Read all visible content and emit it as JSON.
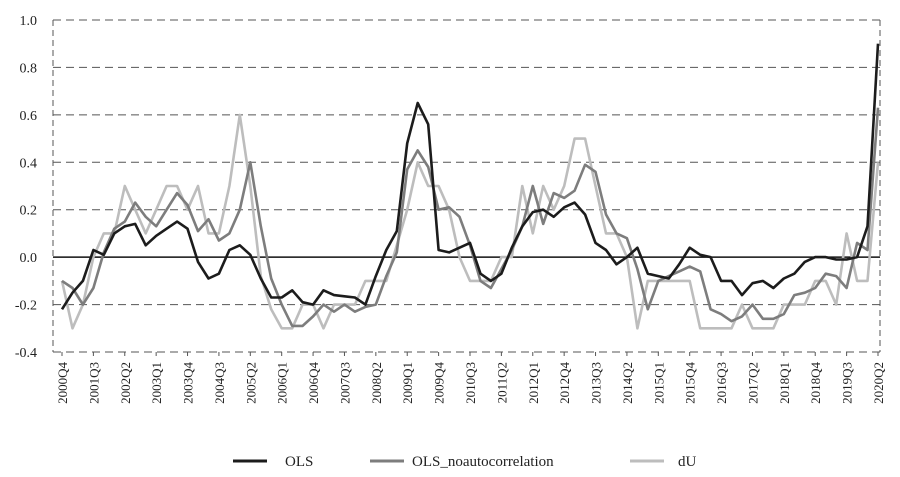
{
  "chart_data": {
    "type": "line",
    "title": "",
    "xlabel": "",
    "ylabel": "",
    "ylim": [
      -0.4,
      1.0
    ],
    "yticks": [
      "1.0",
      "0.8",
      "0.6",
      "0.4",
      "0.2",
      "0.0",
      "-0.2",
      "-0.4"
    ],
    "ytick_values": [
      1.0,
      0.8,
      0.6,
      0.4,
      0.2,
      0.0,
      -0.2,
      -0.4
    ],
    "grid": true,
    "legend_position": "bottom",
    "x": [
      "2000Q4",
      "2001Q1",
      "2001Q2",
      "2001Q3",
      "2001Q4",
      "2002Q1",
      "2002Q2",
      "2002Q3",
      "2002Q4",
      "2003Q1",
      "2003Q2",
      "2003Q3",
      "2003Q4",
      "2004Q1",
      "2004Q2",
      "2004Q3",
      "2004Q4",
      "2005Q1",
      "2005Q2",
      "2005Q3",
      "2005Q4",
      "2006Q1",
      "2006Q2",
      "2006Q3",
      "2006Q4",
      "2007Q1",
      "2007Q2",
      "2007Q3",
      "2007Q4",
      "2008Q1",
      "2008Q2",
      "2008Q3",
      "2008Q4",
      "2009Q1",
      "2009Q2",
      "2009Q3",
      "2009Q4",
      "2010Q1",
      "2010Q2",
      "2010Q3",
      "2010Q4",
      "2011Q1",
      "2011Q2",
      "2011Q3",
      "2011Q4",
      "2012Q1",
      "2012Q2",
      "2012Q3",
      "2012Q4",
      "2013Q1",
      "2013Q2",
      "2013Q3",
      "2013Q4",
      "2014Q1",
      "2014Q2",
      "2014Q3",
      "2014Q4",
      "2015Q1",
      "2015Q2",
      "2015Q3",
      "2015Q4",
      "2016Q1",
      "2016Q2",
      "2016Q3",
      "2016Q4",
      "2017Q1",
      "2017Q2",
      "2017Q3",
      "2017Q4",
      "2018Q1",
      "2018Q2",
      "2018Q3",
      "2018Q4",
      "2019Q1",
      "2019Q2",
      "2019Q3",
      "2019Q4",
      "2020Q1",
      "2020Q2"
    ],
    "xticks": [
      "2000Q4",
      "2001Q3",
      "2002Q2",
      "2003Q1",
      "2003Q4",
      "2004Q3",
      "2005Q2",
      "2006Q1",
      "2006Q4",
      "2007Q3",
      "2008Q2",
      "2009Q1",
      "2009Q4",
      "2010Q3",
      "2011Q2",
      "2012Q1",
      "2012Q4",
      "2013Q3",
      "2014Q2",
      "2015Q1",
      "2015Q4",
      "2016Q3",
      "2017Q2",
      "2018Q1",
      "2018Q4",
      "2019Q3",
      "2020Q2"
    ],
    "series": [
      {
        "name": "OLS",
        "color": "#1c1c1c",
        "values": [
          -0.22,
          -0.15,
          -0.1,
          0.03,
          0.01,
          0.1,
          0.13,
          0.14,
          0.05,
          0.09,
          0.12,
          0.15,
          0.12,
          -0.02,
          -0.09,
          -0.07,
          0.03,
          0.05,
          0.01,
          -0.09,
          -0.17,
          -0.17,
          -0.14,
          -0.19,
          -0.2,
          -0.14,
          -0.16,
          -0.165,
          -0.17,
          -0.2,
          -0.08,
          0.03,
          0.11,
          0.48,
          0.65,
          0.56,
          0.03,
          0.02,
          0.04,
          0.06,
          -0.07,
          -0.1,
          -0.07,
          0.04,
          0.13,
          0.19,
          0.2,
          0.17,
          0.21,
          0.23,
          0.18,
          0.06,
          0.03,
          -0.03,
          0.0,
          0.04,
          -0.07,
          -0.08,
          -0.09,
          -0.03,
          0.04,
          0.01,
          0.0,
          -0.1,
          -0.1,
          -0.16,
          -0.11,
          -0.1,
          -0.13,
          -0.09,
          -0.07,
          -0.02,
          0.0,
          0.0,
          -0.01,
          -0.01,
          0.0,
          0.13,
          0.9
        ]
      },
      {
        "name": "OLS_noautocorrelation",
        "color": "#7d7d7d",
        "values": [
          -0.1,
          -0.13,
          -0.2,
          -0.13,
          0.02,
          0.12,
          0.15,
          0.23,
          0.17,
          0.13,
          0.2,
          0.27,
          0.22,
          0.11,
          0.16,
          0.07,
          0.1,
          0.2,
          0.4,
          0.13,
          -0.09,
          -0.2,
          -0.29,
          -0.29,
          -0.25,
          -0.2,
          -0.23,
          -0.2,
          -0.23,
          -0.21,
          -0.2,
          -0.08,
          0.02,
          0.37,
          0.45,
          0.38,
          0.2,
          0.21,
          0.17,
          0.05,
          -0.1,
          -0.13,
          -0.05,
          0.03,
          0.13,
          0.3,
          0.14,
          0.27,
          0.25,
          0.28,
          0.39,
          0.36,
          0.18,
          0.1,
          0.08,
          -0.05,
          -0.22,
          -0.1,
          -0.08,
          -0.06,
          -0.04,
          -0.06,
          -0.22,
          -0.24,
          -0.27,
          -0.25,
          -0.2,
          -0.26,
          -0.26,
          -0.24,
          -0.16,
          -0.15,
          -0.13,
          -0.07,
          -0.08,
          -0.13,
          0.06,
          0.03,
          0.63
        ]
      },
      {
        "name": "dU",
        "color": "#bdbdbd",
        "values": [
          -0.1,
          -0.3,
          -0.2,
          0.0,
          0.1,
          0.1,
          0.3,
          0.2,
          0.1,
          0.2,
          0.3,
          0.3,
          0.2,
          0.3,
          0.1,
          0.1,
          0.3,
          0.6,
          0.3,
          -0.08,
          -0.22,
          -0.3,
          -0.3,
          -0.2,
          -0.2,
          -0.3,
          -0.2,
          -0.2,
          -0.2,
          -0.1,
          -0.1,
          -0.1,
          0.05,
          0.2,
          0.4,
          0.3,
          0.3,
          0.2,
          0.0,
          -0.1,
          -0.1,
          -0.1,
          0.0,
          0.0,
          0.3,
          0.1,
          0.3,
          0.2,
          0.3,
          0.5,
          0.5,
          0.3,
          0.1,
          0.1,
          0.0,
          -0.3,
          -0.1,
          -0.1,
          -0.1,
          -0.1,
          -0.1,
          -0.3,
          -0.3,
          -0.3,
          -0.3,
          -0.2,
          -0.3,
          -0.3,
          -0.3,
          -0.2,
          -0.2,
          -0.2,
          -0.1,
          -0.1,
          -0.2,
          0.1,
          -0.1,
          -0.1,
          0.4
        ]
      }
    ]
  }
}
